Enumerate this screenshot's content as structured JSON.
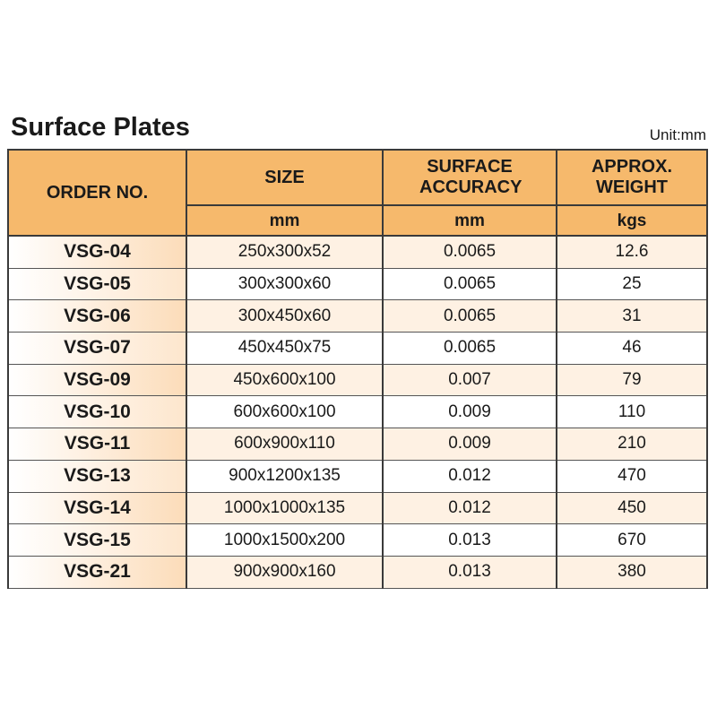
{
  "header": {
    "title": "Surface Plates",
    "unit": "Unit:mm"
  },
  "table": {
    "columns": [
      {
        "label": "ORDER NO."
      },
      {
        "label": "SIZE",
        "unit": "mm"
      },
      {
        "label": "SURFACE ACCURACY",
        "unit": "mm"
      },
      {
        "label": "APPROX. WEIGHT",
        "unit": "kgs"
      }
    ],
    "rows": [
      [
        "VSG-04",
        "250x300x52",
        "0.0065",
        "12.6"
      ],
      [
        "VSG-05",
        "300x300x60",
        "0.0065",
        "25"
      ],
      [
        "VSG-06",
        "300x450x60",
        "0.0065",
        "31"
      ],
      [
        "VSG-07",
        "450x450x75",
        "0.0065",
        "46"
      ],
      [
        "VSG-09",
        "450x600x100",
        "0.007",
        "79"
      ],
      [
        "VSG-10",
        "600x600x100",
        "0.009",
        "110"
      ],
      [
        "VSG-11",
        "600x900x110",
        "0.009",
        "210"
      ],
      [
        "VSG-13",
        "900x1200x135",
        "0.012",
        "470"
      ],
      [
        "VSG-14",
        "1000x1000x135",
        "0.012",
        "450"
      ],
      [
        "VSG-15",
        "1000x1500x200",
        "0.013",
        "670"
      ],
      [
        "VSG-21",
        "900x900x160",
        "0.013",
        "380"
      ]
    ]
  }
}
